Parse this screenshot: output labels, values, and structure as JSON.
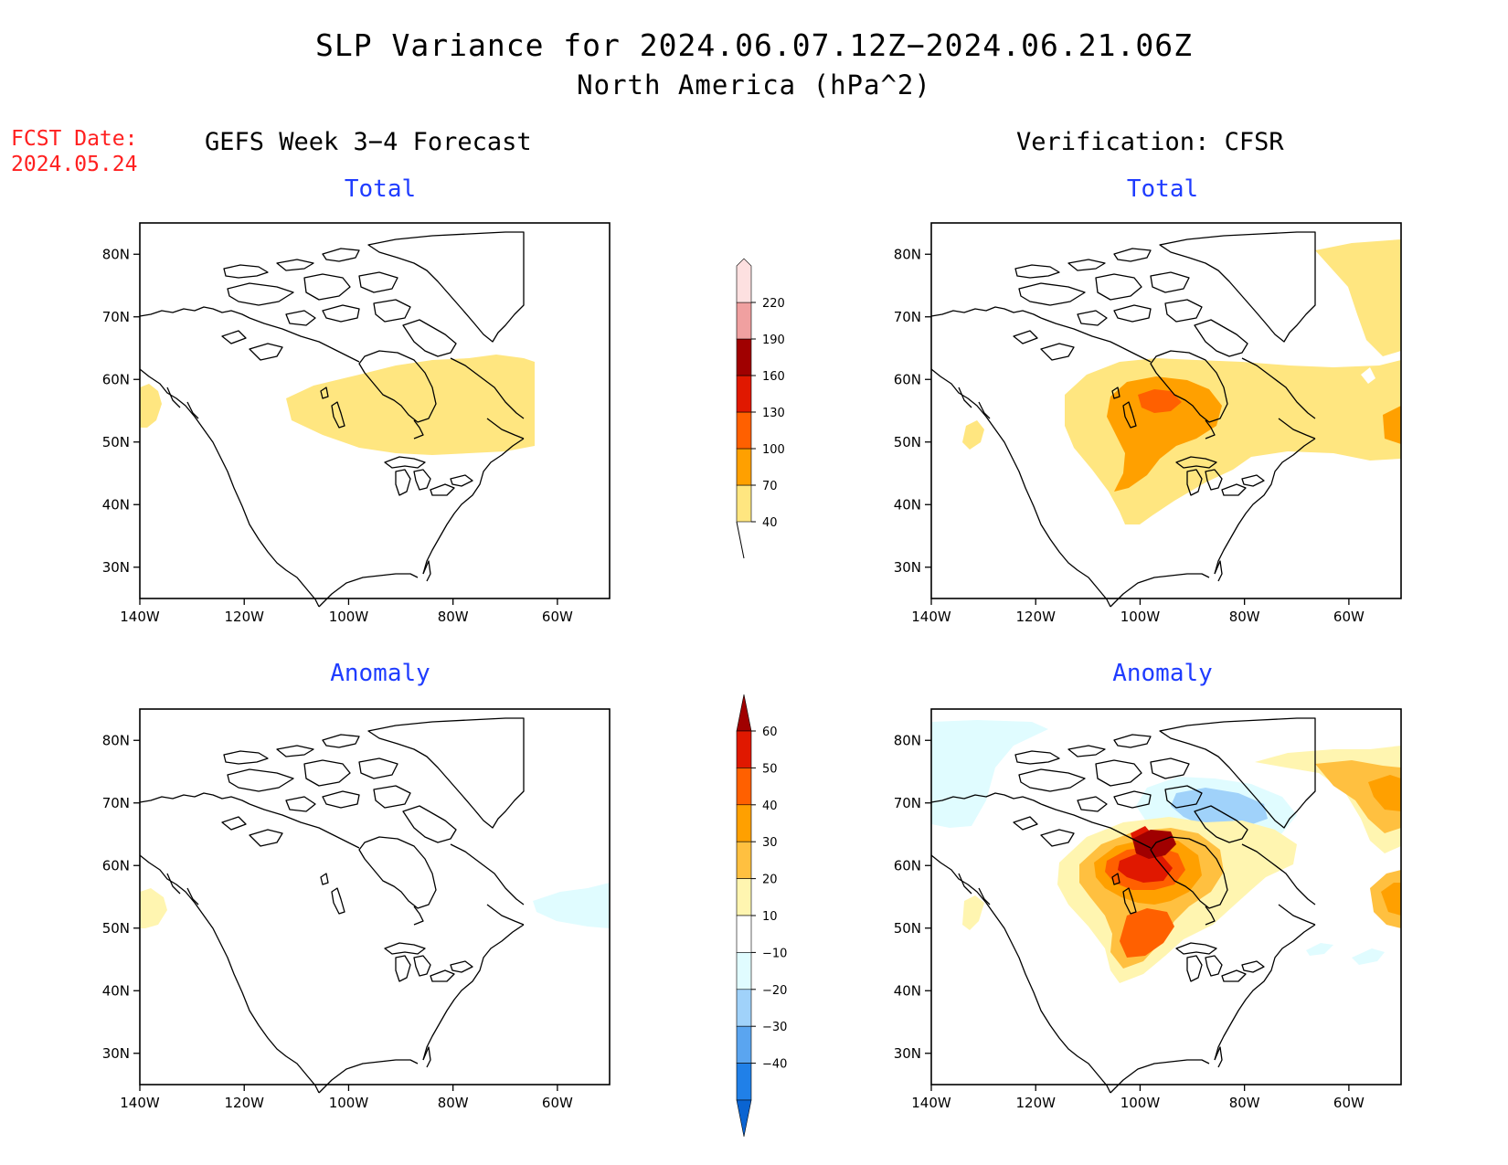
{
  "title": {
    "line1": "SLP Variance for 2024.06.07.12Z−2024.06.21.06Z",
    "line2": "North America (hPa^2)"
  },
  "forecast_date": {
    "label": "FCST Date:",
    "value": "2024.05.24"
  },
  "columns": {
    "left": "GEFS Week 3−4 Forecast",
    "right": "Verification: CFSR"
  },
  "panel_titles": {
    "total": "Total",
    "anomaly": "Anomaly"
  },
  "axes": {
    "lon_ticks": [
      "140W",
      "120W",
      "100W",
      "80W",
      "60W"
    ],
    "lon_values": [
      -140,
      -120,
      -100,
      -80,
      -60
    ],
    "lat_ticks": [
      "80N",
      "70N",
      "60N",
      "50N",
      "40N",
      "30N"
    ],
    "lat_values": [
      80,
      70,
      60,
      50,
      40,
      30
    ],
    "lon_range": [
      -140,
      -50
    ],
    "lat_range": [
      25,
      85
    ]
  },
  "colorbars": {
    "total": {
      "levels": [
        "40",
        "70",
        "100",
        "130",
        "160",
        "190",
        "220"
      ],
      "colors": [
        "#ffe680",
        "#ffa000",
        "#ff6000",
        "#e01800",
        "#a00000",
        "#f0a0a0",
        "#fde0e0"
      ]
    },
    "anomaly": {
      "levels": [
        "60",
        "50",
        "40",
        "30",
        "20",
        "10",
        "−10",
        "−20",
        "−30",
        "−40"
      ],
      "colors": [
        "#a00000",
        "#e01800",
        "#ff6000",
        "#ffa000",
        "#ffc040",
        "#fff5b0",
        "#ffffff",
        "#e0fcff",
        "#a0d2fa",
        "#5aa5f0",
        "#2080e8",
        "#0a64d2"
      ]
    }
  },
  "chart_data": [
    {
      "type": "heatmap",
      "title": "Total",
      "column": "GEFS Week 3−4 Forecast",
      "region": "North America",
      "units": "hPa^2",
      "regions": [
        {
          "area": "Central Canada to Labrador (~52-60N, 115W-50W)",
          "range": "40-70"
        },
        {
          "area": "Pacific coast west of Vancouver Island (~50N, 140W)",
          "range": "40-70"
        }
      ]
    },
    {
      "type": "heatmap",
      "title": "Total",
      "column": "Verification: CFSR",
      "region": "North America",
      "units": "hPa^2",
      "regions": [
        {
          "area": "Central Canada and Northern Plains (~40-60N, 110W-75W)",
          "range": "40-70"
        },
        {
          "area": "Prairies to Hudson Bay core (~42-58N, 105W-85W)",
          "range": "70-100"
        },
        {
          "area": "Manitoba core (~56N, 95W)",
          "range": "100-130"
        },
        {
          "area": "Greenland / Davis Strait (~60-80N)",
          "range": "40-70"
        },
        {
          "area": "Atlantic near Newfoundland (~52N, 50W)",
          "range": "70-100"
        }
      ]
    },
    {
      "type": "heatmap",
      "title": "Anomaly",
      "column": "GEFS Week 3−4 Forecast",
      "region": "North America",
      "units": "hPa^2",
      "regions": [
        {
          "area": "Pacific coast (~50N, 140W)",
          "range": "10-20"
        },
        {
          "area": "Gulf of St. Lawrence (~53N, 55W)",
          "range": "-20 to -10"
        }
      ]
    },
    {
      "type": "heatmap",
      "title": "Anomaly",
      "column": "Verification: CFSR",
      "region": "North America",
      "units": "hPa^2",
      "regions": [
        {
          "area": "Manitoba / Northern Ontario (~55-58N, 98W-92W)",
          "range": "50-60+"
        },
        {
          "area": "Central Canada and Northern Plains (~40-60N)",
          "range": "10-50"
        },
        {
          "area": "Arctic Archipelago / Baffin (~68-72N, 90W-70W)",
          "range": "-30 to -10"
        },
        {
          "area": "Alaska / Beaufort (~70-75N, 140W-125W)",
          "range": "-20 to -10"
        },
        {
          "area": "Greenland (~65-75N, 55W-50W)",
          "range": "20-40"
        },
        {
          "area": "Atlantic near Newfoundland (~53N, 50W)",
          "range": "30-50"
        }
      ]
    }
  ]
}
